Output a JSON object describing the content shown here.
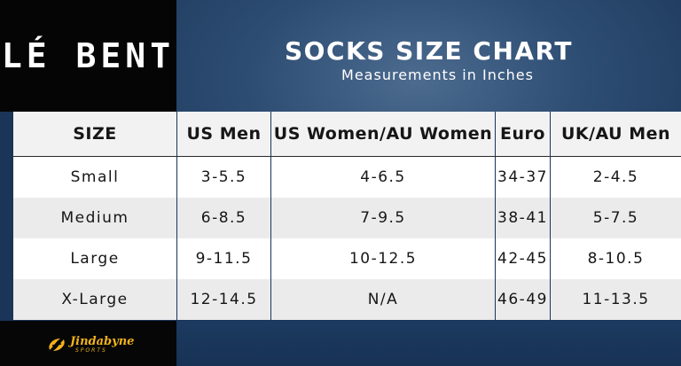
{
  "brand": "LÉ BENT",
  "heading": {
    "title": "SOCKS SIZE CHART",
    "subtitle": "Measurements in Inches"
  },
  "table": {
    "headers": [
      "SIZE",
      "US Men",
      "US Women/AU Women",
      "Euro",
      "UK/AU Men"
    ],
    "rows": [
      [
        "Small",
        "3-5.5",
        "4-6.5",
        "34-37",
        "2-4.5"
      ],
      [
        "Medium",
        "6-8.5",
        "7-9.5",
        "38-41",
        "5-7.5"
      ],
      [
        "Large",
        "9-11.5",
        "10-12.5",
        "42-45",
        "8-10.5"
      ],
      [
        "X-Large",
        "12-14.5",
        "N/A",
        "46-49",
        "11-13.5"
      ]
    ]
  },
  "sponsor": {
    "name": "Jindabyne",
    "tagline": "SPORTS",
    "icon": "jindabyne-logo-icon"
  },
  "colors": {
    "background": "#2e4d73",
    "brand_block": "#050505",
    "row_alt": "#ebebeb",
    "header_row": "#f2f2f2",
    "logo_gold": "#f0b21a"
  }
}
